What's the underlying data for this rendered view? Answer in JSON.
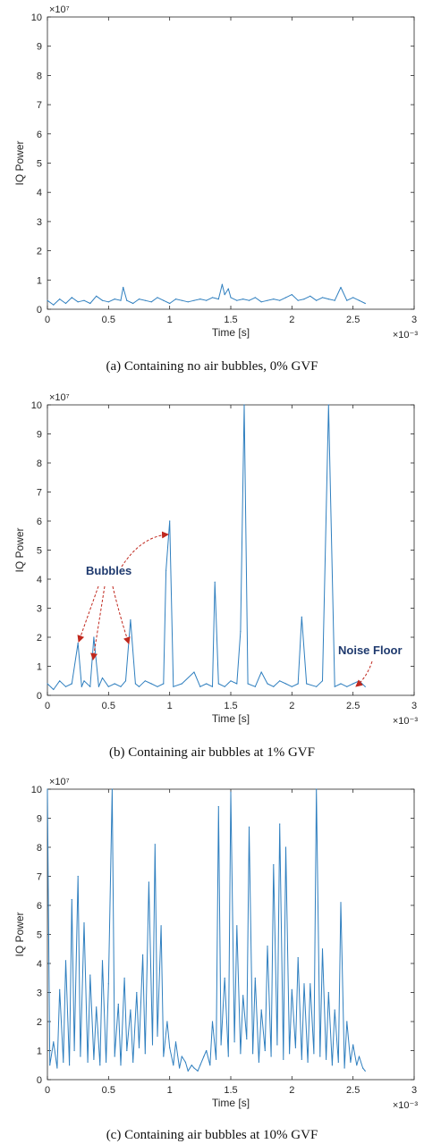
{
  "captions": [
    "(a) Containing no air bubbles, 0% GVF",
    "(b) Containing air bubbles at 1% GVF",
    "(c) Containing air bubbles at 10% GVF"
  ],
  "colors": {
    "line": "#2f7fbf",
    "annotation_arrow": "#c0281e",
    "annotation_text": "#1f3a6e",
    "axes": "#262626"
  },
  "annotations": {
    "bubbles": "Bubbles",
    "noise_floor": "Noise Floor"
  },
  "chart_data": [
    {
      "type": "line",
      "title": "",
      "xlabel": "Time [s]",
      "ylabel": "IQ Power",
      "x_exponent": "×10⁻³",
      "y_exponent": "×10⁷",
      "xlim": [
        0,
        3
      ],
      "ylim": [
        0,
        10
      ],
      "x_ticks": [
        "0",
        "0.5",
        "1",
        "1.5",
        "2",
        "2.5",
        "3"
      ],
      "y_ticks": [
        "0",
        "1",
        "2",
        "3",
        "4",
        "5",
        "6",
        "7",
        "8",
        "9",
        "10"
      ],
      "series": [
        {
          "x": [
            0,
            0.05,
            0.1,
            0.15,
            0.2,
            0.25,
            0.3,
            0.35,
            0.4,
            0.45,
            0.5,
            0.55,
            0.6,
            0.62,
            0.65,
            0.7,
            0.75,
            0.8,
            0.85,
            0.9,
            0.95,
            1.0,
            1.05,
            1.1,
            1.15,
            1.2,
            1.25,
            1.3,
            1.35,
            1.4,
            1.43,
            1.45,
            1.48,
            1.5,
            1.55,
            1.6,
            1.65,
            1.7,
            1.75,
            1.8,
            1.85,
            1.9,
            1.95,
            2.0,
            2.05,
            2.1,
            2.15,
            2.2,
            2.25,
            2.3,
            2.35,
            2.4,
            2.45,
            2.5,
            2.55,
            2.6
          ],
          "y": [
            0.3,
            0.15,
            0.35,
            0.2,
            0.4,
            0.25,
            0.3,
            0.2,
            0.45,
            0.3,
            0.25,
            0.35,
            0.3,
            0.75,
            0.3,
            0.2,
            0.35,
            0.3,
            0.25,
            0.4,
            0.3,
            0.2,
            0.35,
            0.3,
            0.25,
            0.3,
            0.35,
            0.3,
            0.4,
            0.35,
            0.85,
            0.5,
            0.7,
            0.4,
            0.3,
            0.35,
            0.3,
            0.4,
            0.25,
            0.3,
            0.35,
            0.3,
            0.4,
            0.5,
            0.3,
            0.35,
            0.45,
            0.3,
            0.4,
            0.35,
            0.3,
            0.75,
            0.3,
            0.4,
            0.3,
            0.2
          ]
        }
      ]
    },
    {
      "type": "line",
      "title": "",
      "xlabel": "Time [s]",
      "ylabel": "IQ Power",
      "x_exponent": "×10⁻³",
      "y_exponent": "×10⁷",
      "xlim": [
        0,
        3
      ],
      "ylim": [
        0,
        10
      ],
      "x_ticks": [
        "0",
        "0.5",
        "1",
        "1.5",
        "2",
        "2.5",
        "3"
      ],
      "y_ticks": [
        "0",
        "1",
        "2",
        "3",
        "4",
        "5",
        "6",
        "7",
        "8",
        "9",
        "10"
      ],
      "series": [
        {
          "x": [
            0,
            0.05,
            0.1,
            0.15,
            0.2,
            0.25,
            0.28,
            0.3,
            0.35,
            0.38,
            0.42,
            0.45,
            0.5,
            0.55,
            0.6,
            0.64,
            0.68,
            0.72,
            0.75,
            0.8,
            0.85,
            0.9,
            0.95,
            0.97,
            1.0,
            1.03,
            1.1,
            1.2,
            1.25,
            1.3,
            1.35,
            1.37,
            1.4,
            1.45,
            1.5,
            1.55,
            1.58,
            1.61,
            1.64,
            1.7,
            1.75,
            1.8,
            1.85,
            1.9,
            1.95,
            2.0,
            2.05,
            2.08,
            2.12,
            2.2,
            2.25,
            2.3,
            2.35,
            2.4,
            2.45,
            2.5,
            2.55,
            2.6
          ],
          "y": [
            0.4,
            0.2,
            0.5,
            0.3,
            0.4,
            1.8,
            0.3,
            0.5,
            0.3,
            2.0,
            0.3,
            0.6,
            0.3,
            0.4,
            0.3,
            0.5,
            2.6,
            0.4,
            0.3,
            0.5,
            0.4,
            0.3,
            0.4,
            4.3,
            6.0,
            0.3,
            0.4,
            0.8,
            0.3,
            0.4,
            0.3,
            3.9,
            0.4,
            0.3,
            0.5,
            0.4,
            2.2,
            10,
            0.4,
            0.3,
            0.8,
            0.4,
            0.3,
            0.5,
            0.4,
            0.3,
            0.4,
            2.7,
            0.4,
            0.3,
            0.5,
            10,
            0.3,
            0.4,
            0.3,
            0.4,
            0.5,
            0.3
          ]
        }
      ]
    },
    {
      "type": "line",
      "title": "",
      "xlabel": "Time [s]",
      "ylabel": "IQ Power",
      "x_exponent": "×10⁻³",
      "y_exponent": "×10⁷",
      "xlim": [
        0,
        3
      ],
      "ylim": [
        0,
        10
      ],
      "x_ticks": [
        "0",
        "0.5",
        "1",
        "1.5",
        "2",
        "2.5",
        "3"
      ],
      "y_ticks": [
        "0",
        "1",
        "2",
        "3",
        "4",
        "5",
        "6",
        "7",
        "8",
        "9",
        "10"
      ],
      "series": [
        {
          "x": [
            0,
            0.02,
            0.05,
            0.08,
            0.1,
            0.13,
            0.15,
            0.18,
            0.2,
            0.22,
            0.25,
            0.27,
            0.3,
            0.33,
            0.35,
            0.38,
            0.4,
            0.43,
            0.45,
            0.48,
            0.5,
            0.53,
            0.55,
            0.58,
            0.6,
            0.63,
            0.65,
            0.68,
            0.7,
            0.73,
            0.75,
            0.78,
            0.8,
            0.83,
            0.86,
            0.88,
            0.9,
            0.93,
            0.95,
            0.98,
            1.0,
            1.03,
            1.05,
            1.08,
            1.1,
            1.13,
            1.15,
            1.18,
            1.2,
            1.23,
            1.25,
            1.28,
            1.3,
            1.33,
            1.35,
            1.38,
            1.4,
            1.42,
            1.45,
            1.48,
            1.5,
            1.53,
            1.55,
            1.58,
            1.6,
            1.63,
            1.65,
            1.68,
            1.7,
            1.73,
            1.75,
            1.78,
            1.8,
            1.83,
            1.85,
            1.88,
            1.9,
            1.93,
            1.95,
            1.98,
            2.0,
            2.03,
            2.05,
            2.08,
            2.1,
            2.13,
            2.15,
            2.18,
            2.2,
            2.23,
            2.25,
            2.28,
            2.3,
            2.33,
            2.35,
            2.38,
            2.4,
            2.43,
            2.45,
            2.48,
            2.5,
            2.53,
            2.55,
            2.58,
            2.6
          ],
          "y": [
            10,
            0.5,
            1.3,
            0.4,
            3.1,
            0.6,
            4.1,
            0.5,
            6.2,
            1.0,
            7.0,
            0.8,
            5.4,
            0.6,
            3.6,
            0.7,
            2.5,
            0.5,
            4.1,
            0.6,
            3.3,
            10,
            0.8,
            2.6,
            0.5,
            3.5,
            1.0,
            2.4,
            0.6,
            3.0,
            1.1,
            4.3,
            0.9,
            6.8,
            1.2,
            8.1,
            1.5,
            5.3,
            0.8,
            2.0,
            1.1,
            0.5,
            1.3,
            0.4,
            0.8,
            0.6,
            0.3,
            0.5,
            0.4,
            0.3,
            0.5,
            0.8,
            1.0,
            0.5,
            2.0,
            0.7,
            9.4,
            1.2,
            3.5,
            0.8,
            9.9,
            1.3,
            5.3,
            0.9,
            2.9,
            1.4,
            8.7,
            0.9,
            3.5,
            0.6,
            2.4,
            1.0,
            4.6,
            0.8,
            7.4,
            1.2,
            8.8,
            0.7,
            8.0,
            0.9,
            3.1,
            1.1,
            4.2,
            0.7,
            3.3,
            0.6,
            3.3,
            0.9,
            10,
            0.8,
            4.5,
            0.7,
            3.0,
            0.5,
            2.4,
            0.6,
            6.1,
            0.4,
            2.0,
            0.6,
            1.2,
            0.5,
            0.8,
            0.4,
            0.3
          ]
        }
      ]
    }
  ]
}
